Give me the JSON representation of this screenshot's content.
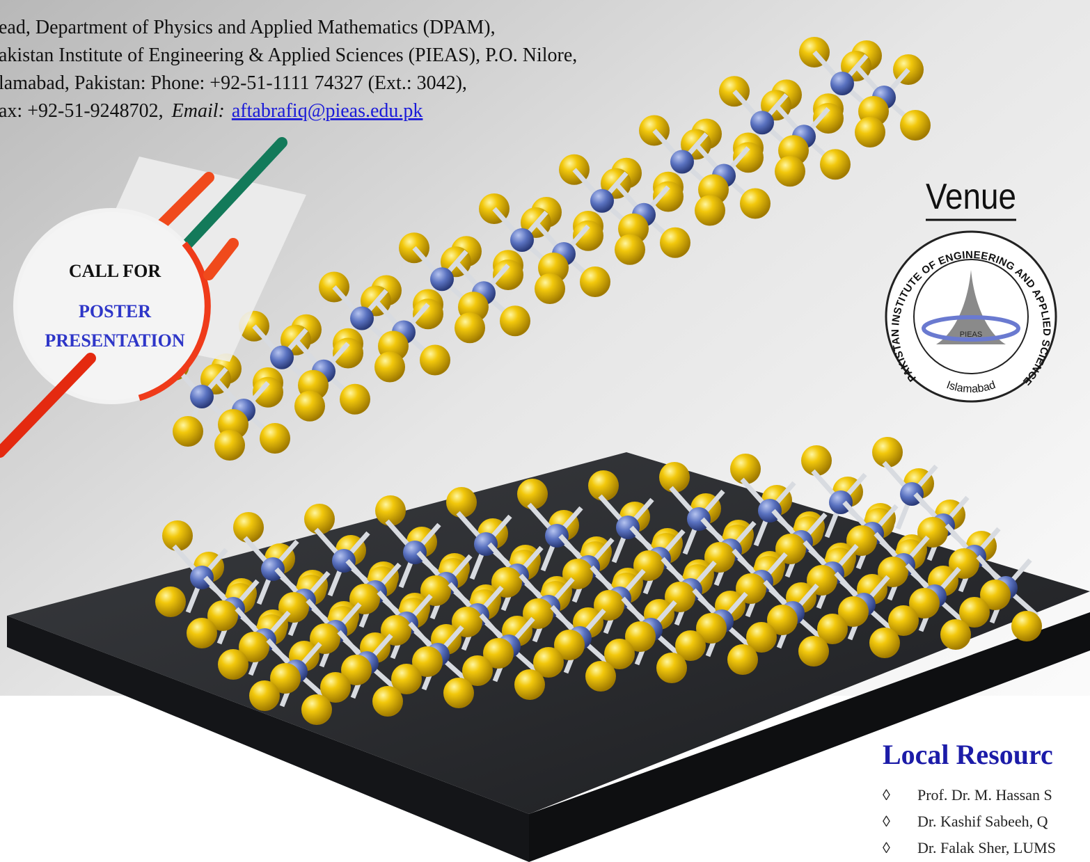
{
  "contact": {
    "lines": [
      "ead, Department of Physics and Applied Mathematics (DPAM),",
      "akistan Institute of Engineering & Applied Sciences (PIEAS), P.O. Nilore,",
      "lamabad, Pakistan: Phone: +92-51-1111 74327 (Ext.: 3042),"
    ],
    "fax": "ax: +92-51-9248702,",
    "email_label": "Email:",
    "email": "aftabrafiq@pieas.edu.pk"
  },
  "badge": {
    "line1": "CALL FOR",
    "line2": "POSTER",
    "line3": "PRESENTATION"
  },
  "venue": {
    "title": "Venue",
    "logo": {
      "ring": "PAKISTAN INSTITUTE OF ENGINEERING AND APPLIED SCIENCES",
      "center": "PIEAS",
      "city": "Islamabad"
    }
  },
  "resources": {
    "title": "Local Resourc",
    "items": [
      "Prof. Dr. M. Hassan S",
      "Dr. Kashif Sabeeh, Q",
      "Dr. Falak Sher, LUMS"
    ]
  }
}
